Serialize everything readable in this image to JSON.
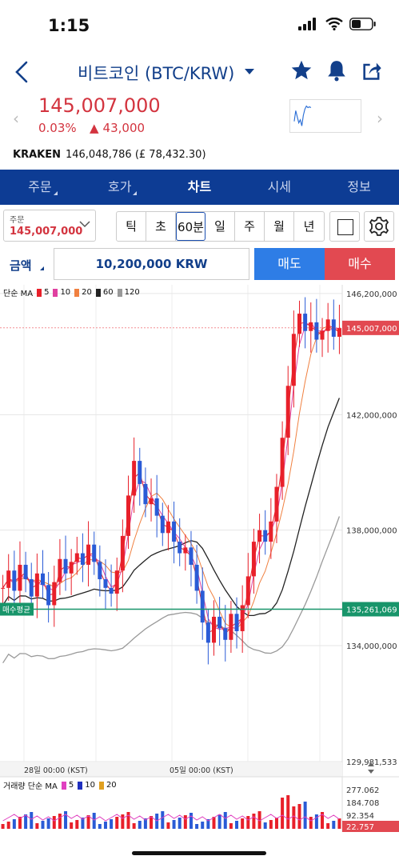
{
  "status": {
    "time": "1:15"
  },
  "nav": {
    "title": "비트코인 (BTC/KRW)"
  },
  "price": {
    "current": "145,007,000",
    "change_pct": "0.03%",
    "change_abs": "43,000",
    "color_up": "#d3343f"
  },
  "exchange": {
    "name": "KRAKEN",
    "value": "146,048,786 (£ 78,432.30)"
  },
  "tabs": [
    {
      "label": "주문"
    },
    {
      "label": "호가"
    },
    {
      "label": "차트"
    },
    {
      "label": "시세"
    },
    {
      "label": "정보"
    }
  ],
  "order": {
    "label": "주문",
    "value": "145,007,000"
  },
  "periods": [
    "틱",
    "초",
    "60분",
    "일",
    "주",
    "월",
    "년"
  ],
  "active_period": "60분",
  "amount": {
    "label": "금액",
    "value": "10,200,000 KRW"
  },
  "actions": {
    "sell": "매도",
    "buy": "매수"
  },
  "legend": {
    "price": {
      "title": "단순 MA",
      "items": [
        "5",
        "10",
        "20",
        "60",
        "120"
      ],
      "colors": [
        "#e8202a",
        "#e040a0",
        "#f08040",
        "#222222",
        "#999999"
      ]
    },
    "volume": {
      "title": "거래량 단순 MA",
      "items": [
        "5",
        "10",
        "20"
      ],
      "colors": [
        "#e040c0",
        "#2030c0",
        "#e0a020"
      ]
    }
  },
  "chart_data": {
    "type": "line",
    "price_axis_labels": [
      "146,200,000",
      "142,000,000",
      "138,000,000",
      "134,000,000",
      "129,981,533"
    ],
    "price_axis_values": [
      146200000,
      142000000,
      138000000,
      134000000,
      129981533
    ],
    "current_price_label": "145,007,000",
    "current_price": 145007000,
    "avg_buy_label": "매수평균",
    "avg_buy_price_label": "135,261,069",
    "avg_buy_price": 135261069,
    "x_labels": [
      "28일 00:00 (KST)",
      "05일 00:00 (KST)"
    ],
    "volume_axis_labels": [
      "277.062",
      "184.708",
      "92.354",
      "22.757"
    ],
    "ylim": [
      129981533,
      146500000
    ],
    "close_series": [
      136.0,
      136.6,
      135.9,
      136.8,
      136.3,
      135.7,
      136.5,
      136.1,
      135.4,
      136.2,
      137.0,
      136.5,
      136.9,
      137.2,
      136.8,
      137.5,
      136.9,
      136.3,
      136.0,
      135.8,
      136.6,
      137.8,
      139.2,
      140.4,
      139.6,
      138.9,
      139.1,
      138.5,
      137.9,
      138.3,
      137.6,
      137.2,
      137.4,
      136.8,
      135.9,
      134.8,
      134.1,
      135.0,
      134.6,
      134.2,
      135.1,
      134.5,
      135.4,
      136.4,
      137.6,
      138.0,
      137.6,
      138.3,
      139.5,
      141.2,
      143.0,
      144.8,
      145.5,
      144.9,
      145.2,
      144.6,
      144.9,
      145.3,
      144.7,
      145.0
    ]
  }
}
